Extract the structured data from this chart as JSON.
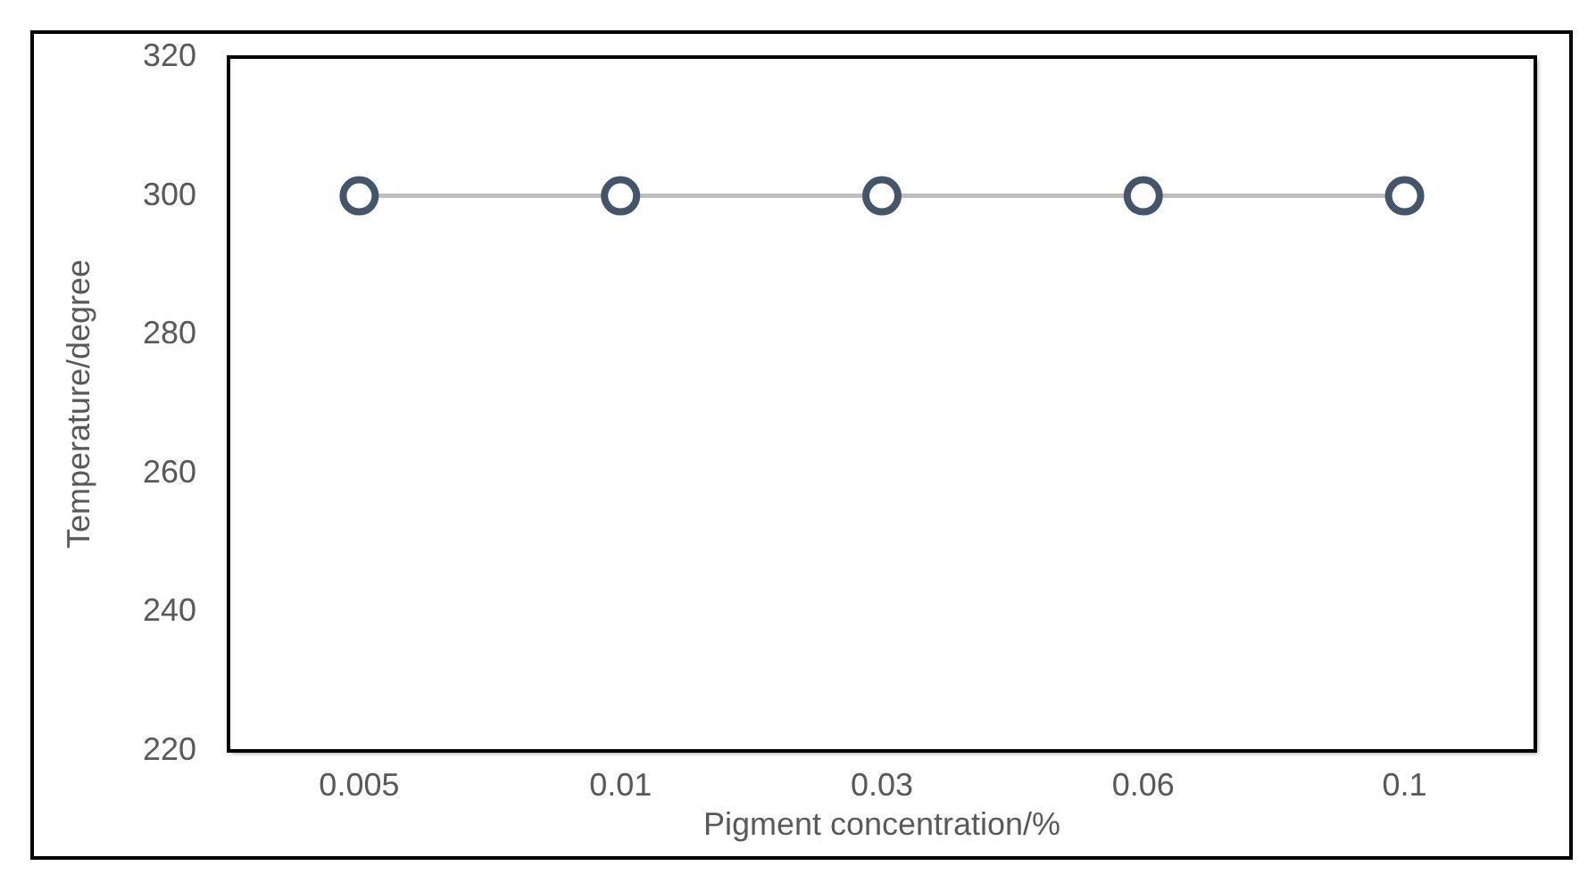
{
  "chart_data": {
    "type": "line",
    "xlabel": "Pigment concentration/%",
    "ylabel": "Temperature/degree",
    "categories": [
      "0.005",
      "0.01",
      "0.03",
      "0.06",
      "0.1"
    ],
    "series": [
      {
        "color": "#bfbfbf",
        "colors": [
          "#44546a",
          "#44546a",
          "#44546a",
          "#44546a",
          "#44546a"
        ],
        "values": [
          300,
          300,
          300,
          300,
          300
        ]
      }
    ],
    "ylim": [
      220,
      320
    ],
    "yticks": [
      220,
      240,
      260,
      280,
      300,
      320
    ],
    "marker": "circle",
    "line_style": "solid"
  }
}
